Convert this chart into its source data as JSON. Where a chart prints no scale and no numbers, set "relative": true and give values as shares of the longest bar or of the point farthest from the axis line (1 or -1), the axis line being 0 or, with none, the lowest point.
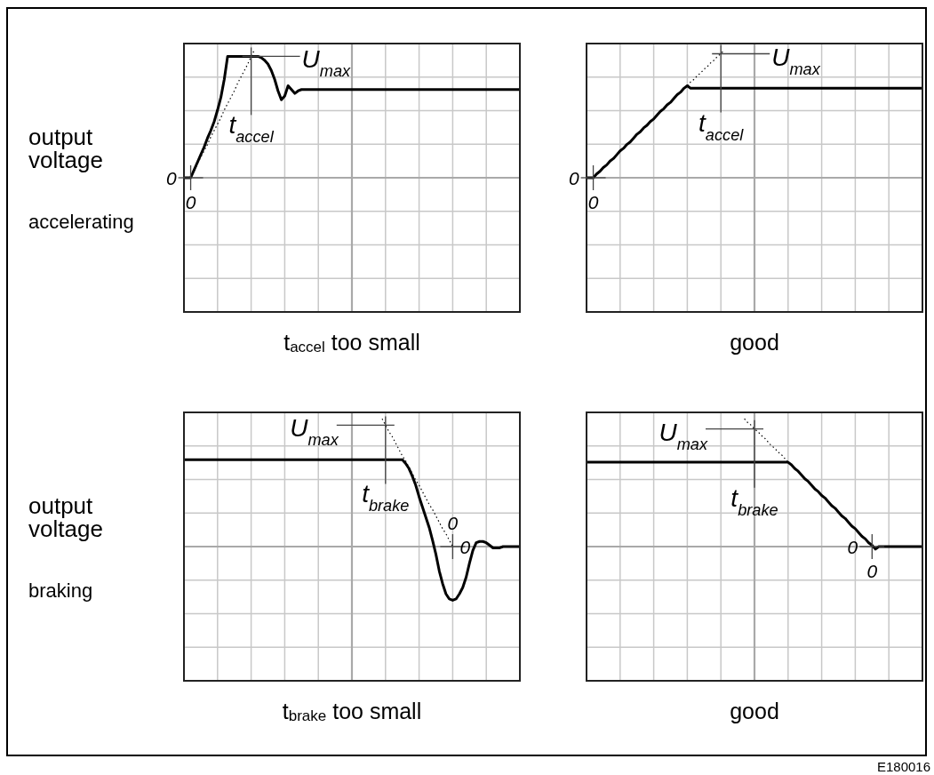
{
  "chart_data": [
    {
      "type": "line",
      "relative": true,
      "grid": true,
      "title": "t$_{accel}$ too small",
      "ylabel": "output voltage",
      "categories": [
        null,
        null,
        "0",
        null,
        null,
        null,
        null,
        null,
        null,
        null,
        null,
        null,
        null,
        null,
        null,
        null,
        null,
        null,
        null,
        null,
        "t$_{accel}$",
        null,
        null,
        null,
        null,
        null,
        null,
        null,
        null,
        null,
        null,
        null,
        null,
        null,
        null,
        null,
        null,
        null,
        null,
        null,
        null,
        null,
        null,
        null,
        null,
        null,
        null,
        null,
        null,
        null,
        null,
        null,
        null,
        null,
        null,
        null,
        null,
        null,
        null,
        null,
        null,
        null,
        null,
        null,
        null,
        null,
        null,
        null,
        null,
        null,
        null,
        null,
        null,
        null,
        null,
        null,
        null,
        null,
        null,
        null,
        null,
        null,
        null,
        null,
        null,
        null,
        null,
        null,
        null,
        null,
        null,
        null,
        null,
        null,
        null,
        null,
        null,
        null,
        null,
        null,
        null
      ],
      "series": [
        {
          "color": "#000000",
          "values": [
            0,
            0,
            0,
            0.06,
            0.12,
            0.18,
            0.24,
            0.31,
            0.37,
            0.44,
            0.53,
            0.63,
            0.77,
            0.95,
            0.95,
            0.95,
            0.95,
            0.95,
            0.95,
            0.95,
            0.95,
            0.95,
            0.95,
            0.94,
            0.92,
            0.89,
            0.84,
            0.77,
            0.68,
            0.61,
            0.64,
            0.72,
            0.69,
            0.66,
            0.68,
            0.69,
            0.69,
            0.69,
            0.69,
            0.69,
            0.69,
            0.69,
            0.69,
            0.69,
            0.69,
            0.69,
            0.69,
            0.69,
            0.69,
            0.69,
            0.69,
            0.69,
            0.69,
            0.69,
            0.69,
            0.69,
            0.69,
            0.69,
            0.69,
            0.69,
            0.69,
            0.69,
            0.69,
            0.69,
            0.69,
            0.69,
            0.69,
            0.69,
            0.69,
            0.69,
            0.69,
            0.69,
            0.69,
            0.69,
            0.69,
            0.69,
            0.69,
            0.69,
            0.69,
            0.69,
            0.69,
            0.69,
            0.69,
            0.69,
            0.69,
            0.69,
            0.69,
            0.69,
            0.69,
            0.69,
            0.69,
            0.69,
            0.69,
            0.69,
            0.69,
            0.69,
            0.69,
            0.69,
            0.69,
            0.69,
            0.69
          ]
        },
        {
          "color": "#000000",
          "line_style": "dotted",
          "values": [
            null,
            null,
            0,
            0.05,
            0.11,
            0.16,
            0.21,
            0.26,
            0.32,
            0.37,
            0.42,
            0.47,
            0.53,
            0.58,
            0.63,
            0.68,
            0.74,
            0.79,
            0.84,
            0.89,
            0.95,
            1,
            null,
            null,
            null,
            null,
            null,
            null,
            null,
            null,
            null,
            null,
            null,
            null,
            null,
            null,
            null,
            null,
            null,
            null,
            null,
            null,
            null,
            null,
            null,
            null,
            null,
            null,
            null,
            null,
            null,
            null,
            null,
            null,
            null,
            null,
            null,
            null,
            null,
            null,
            null,
            null,
            null,
            null,
            null,
            null,
            null,
            null,
            null,
            null,
            null,
            null,
            null,
            null,
            null,
            null,
            null,
            null,
            null,
            null,
            null,
            null,
            null,
            null,
            null,
            null,
            null,
            null,
            null,
            null,
            null,
            null,
            null,
            null,
            null,
            null,
            null,
            null,
            null,
            null,
            null
          ]
        }
      ],
      "annotations": [
        "0",
        "U$_{max}$",
        "accelerating"
      ]
    },
    {
      "type": "line",
      "relative": true,
      "grid": true,
      "title": "good",
      "categories": [
        null,
        null,
        "0",
        null,
        null,
        null,
        null,
        null,
        null,
        null,
        null,
        null,
        null,
        null,
        null,
        null,
        null,
        null,
        null,
        null,
        null,
        null,
        null,
        null,
        null,
        null,
        null,
        null,
        null,
        null,
        null,
        null,
        null,
        null,
        null,
        null,
        null,
        null,
        null,
        null,
        "t$_{accel}$",
        null,
        null,
        null,
        null,
        null,
        null,
        null,
        null,
        null,
        null,
        null,
        null,
        null,
        null,
        null,
        null,
        null,
        null,
        null,
        null,
        null,
        null,
        null,
        null,
        null,
        null,
        null,
        null,
        null,
        null,
        null,
        null,
        null,
        null,
        null,
        null,
        null,
        null,
        null,
        null,
        null,
        null,
        null,
        null,
        null,
        null,
        null,
        null,
        null,
        null,
        null,
        null,
        null,
        null,
        null,
        null,
        null,
        null,
        null,
        null
      ],
      "series": [
        {
          "color": "#000000",
          "values": [
            0,
            0,
            0,
            0.03,
            0.05,
            0.08,
            0.1,
            0.13,
            0.15,
            0.18,
            0.21,
            0.23,
            0.26,
            0.28,
            0.31,
            0.34,
            0.36,
            0.39,
            0.41,
            0.44,
            0.46,
            0.49,
            0.52,
            0.54,
            0.57,
            0.59,
            0.62,
            0.65,
            0.67,
            0.7,
            0.72,
            0.7,
            0.7,
            0.7,
            0.7,
            0.7,
            0.7,
            0.7,
            0.7,
            0.7,
            0.7,
            0.7,
            0.7,
            0.7,
            0.7,
            0.7,
            0.7,
            0.7,
            0.7,
            0.7,
            0.7,
            0.7,
            0.7,
            0.7,
            0.7,
            0.7,
            0.7,
            0.7,
            0.7,
            0.7,
            0.7,
            0.7,
            0.7,
            0.7,
            0.7,
            0.7,
            0.7,
            0.7,
            0.7,
            0.7,
            0.7,
            0.7,
            0.7,
            0.7,
            0.7,
            0.7,
            0.7,
            0.7,
            0.7,
            0.7,
            0.7,
            0.7,
            0.7,
            0.7,
            0.7,
            0.7,
            0.7,
            0.7,
            0.7,
            0.7,
            0.7,
            0.7,
            0.7,
            0.7,
            0.7,
            0.7,
            0.7,
            0.7,
            0.7,
            0.7,
            0.7
          ]
        },
        {
          "color": "#000000",
          "line_style": "dotted",
          "values": [
            null,
            null,
            null,
            null,
            null,
            null,
            null,
            null,
            null,
            null,
            null,
            null,
            null,
            null,
            null,
            null,
            null,
            null,
            null,
            null,
            null,
            null,
            null,
            null,
            null,
            null,
            null,
            null,
            null,
            null,
            0.72,
            0.75,
            0.77,
            0.8,
            0.82,
            0.85,
            0.87,
            0.9,
            0.92,
            0.95,
            0.97,
            1,
            null,
            null,
            null,
            null,
            null,
            null,
            null,
            null,
            null,
            null,
            null,
            null,
            null,
            null,
            null,
            null,
            null,
            null,
            null,
            null,
            null,
            null,
            null,
            null,
            null,
            null,
            null,
            null,
            null,
            null,
            null,
            null,
            null,
            null,
            null,
            null,
            null,
            null,
            null,
            null,
            null,
            null,
            null,
            null,
            null,
            null,
            null,
            null,
            null,
            null,
            null,
            null,
            null,
            null,
            null,
            null,
            null,
            null,
            null
          ]
        }
      ],
      "annotations": [
        "0",
        "U$_{max}$"
      ]
    },
    {
      "type": "line",
      "relative": true,
      "grid": true,
      "title": "t$_{brake}$ too small",
      "ylabel": "output voltage",
      "categories": [
        null,
        null,
        null,
        null,
        null,
        null,
        null,
        null,
        null,
        null,
        null,
        null,
        null,
        null,
        null,
        null,
        null,
        null,
        null,
        null,
        null,
        null,
        null,
        null,
        null,
        null,
        null,
        null,
        null,
        null,
        null,
        null,
        null,
        null,
        null,
        null,
        null,
        null,
        null,
        null,
        null,
        null,
        null,
        null,
        null,
        null,
        null,
        null,
        null,
        null,
        null,
        null,
        null,
        null,
        null,
        null,
        null,
        null,
        null,
        null,
        "t$_{brake}$",
        null,
        null,
        null,
        null,
        null,
        null,
        null,
        null,
        null,
        null,
        null,
        null,
        null,
        null,
        null,
        null,
        null,
        null,
        null,
        "0",
        null,
        null,
        null,
        null,
        null,
        null,
        null,
        null,
        null,
        null,
        null,
        null,
        null,
        null,
        null,
        null,
        null,
        null,
        null,
        null
      ],
      "series": [
        {
          "color": "#000000",
          "values": [
            0.68,
            0.68,
            0.68,
            0.68,
            0.68,
            0.68,
            0.68,
            0.68,
            0.68,
            0.68,
            0.68,
            0.68,
            0.68,
            0.68,
            0.68,
            0.68,
            0.68,
            0.68,
            0.68,
            0.68,
            0.68,
            0.68,
            0.68,
            0.68,
            0.68,
            0.68,
            0.68,
            0.68,
            0.68,
            0.68,
            0.68,
            0.68,
            0.68,
            0.68,
            0.68,
            0.68,
            0.68,
            0.68,
            0.68,
            0.68,
            0.68,
            0.68,
            0.68,
            0.68,
            0.68,
            0.68,
            0.68,
            0.68,
            0.68,
            0.68,
            0.68,
            0.68,
            0.68,
            0.68,
            0.68,
            0.68,
            0.68,
            0.68,
            0.68,
            0.68,
            0.68,
            0.68,
            0.68,
            0.68,
            0.68,
            0.68,
            0.65,
            0.61,
            0.55,
            0.48,
            0.39,
            0.31,
            0.23,
            0.15,
            0.05,
            -0.06,
            -0.19,
            -0.29,
            -0.37,
            -0.41,
            -0.42,
            -0.41,
            -0.37,
            -0.32,
            -0.24,
            -0.13,
            -0.03,
            0.03,
            0.04,
            0.04,
            0.03,
            0.01,
            -0.01,
            -0.01,
            -0.01,
            0,
            0,
            0,
            0,
            0,
            0
          ]
        },
        {
          "color": "#000000",
          "line_style": "dotted",
          "values": [
            null,
            null,
            null,
            null,
            null,
            null,
            null,
            null,
            null,
            null,
            null,
            null,
            null,
            null,
            null,
            null,
            null,
            null,
            null,
            null,
            null,
            null,
            null,
            null,
            null,
            null,
            null,
            null,
            null,
            null,
            null,
            null,
            null,
            null,
            null,
            null,
            null,
            null,
            null,
            null,
            null,
            null,
            null,
            null,
            null,
            null,
            null,
            null,
            null,
            null,
            null,
            null,
            null,
            null,
            null,
            null,
            null,
            null,
            null,
            1,
            0.95,
            0.9,
            0.86,
            0.81,
            0.76,
            0.71,
            0.67,
            0.62,
            0.57,
            0.52,
            0.48,
            0.43,
            0.38,
            0.33,
            0.29,
            0.24,
            0.19,
            0.14,
            0.1,
            0.05,
            0,
            null,
            null,
            null,
            null,
            null,
            null,
            null,
            null,
            null,
            null,
            null,
            null,
            null,
            null,
            null,
            null,
            null,
            null,
            null,
            null
          ]
        }
      ],
      "annotations": [
        "U$_{max}$",
        "0",
        "braking"
      ]
    },
    {
      "type": "line",
      "relative": true,
      "grid": true,
      "title": "good",
      "categories": [
        null,
        null,
        null,
        null,
        null,
        null,
        null,
        null,
        null,
        null,
        null,
        null,
        null,
        null,
        null,
        null,
        null,
        null,
        null,
        null,
        null,
        null,
        null,
        null,
        null,
        null,
        null,
        null,
        null,
        null,
        null,
        null,
        null,
        null,
        null,
        null,
        null,
        null,
        null,
        null,
        null,
        null,
        null,
        null,
        null,
        null,
        null,
        null,
        null,
        null,
        "t$_{brake}$",
        null,
        null,
        null,
        null,
        null,
        null,
        null,
        null,
        null,
        null,
        null,
        null,
        null,
        null,
        null,
        null,
        null,
        null,
        null,
        null,
        null,
        null,
        null,
        null,
        null,
        null,
        null,
        null,
        null,
        null,
        null,
        null,
        null,
        null,
        "0",
        null,
        null,
        null,
        null,
        null,
        null,
        null,
        null,
        null,
        null,
        null,
        null,
        null,
        null,
        null
      ],
      "series": [
        {
          "color": "#000000",
          "values": [
            0.66,
            0.66,
            0.66,
            0.66,
            0.66,
            0.66,
            0.66,
            0.66,
            0.66,
            0.66,
            0.66,
            0.66,
            0.66,
            0.66,
            0.66,
            0.66,
            0.66,
            0.66,
            0.66,
            0.66,
            0.66,
            0.66,
            0.66,
            0.66,
            0.66,
            0.66,
            0.66,
            0.66,
            0.66,
            0.66,
            0.66,
            0.66,
            0.66,
            0.66,
            0.66,
            0.66,
            0.66,
            0.66,
            0.66,
            0.66,
            0.66,
            0.66,
            0.66,
            0.66,
            0.66,
            0.66,
            0.66,
            0.66,
            0.66,
            0.66,
            0.66,
            0.66,
            0.66,
            0.66,
            0.66,
            0.66,
            0.66,
            0.66,
            0.66,
            0.66,
            0.66,
            0.64,
            0.61,
            0.59,
            0.56,
            0.53,
            0.51,
            0.48,
            0.45,
            0.43,
            0.4,
            0.38,
            0.35,
            0.32,
            0.3,
            0.27,
            0.24,
            0.22,
            0.19,
            0.16,
            0.14,
            0.11,
            0.08,
            0.06,
            0.03,
            0.01,
            -0.02,
            0,
            0,
            0,
            0,
            0,
            0,
            0,
            0,
            0,
            0,
            0,
            0,
            0,
            0
          ]
        },
        {
          "color": "#000000",
          "line_style": "dotted",
          "values": [
            null,
            null,
            null,
            null,
            null,
            null,
            null,
            null,
            null,
            null,
            null,
            null,
            null,
            null,
            null,
            null,
            null,
            null,
            null,
            null,
            null,
            null,
            null,
            null,
            null,
            null,
            null,
            null,
            null,
            null,
            null,
            null,
            null,
            null,
            null,
            null,
            null,
            null,
            null,
            null,
            null,
            null,
            null,
            null,
            null,
            null,
            null,
            1,
            0.97,
            0.95,
            0.92,
            0.9,
            0.87,
            0.85,
            0.82,
            0.79,
            0.77,
            0.74,
            0.72,
            0.69,
            0.66,
            null,
            null,
            null,
            null,
            null,
            null,
            null,
            null,
            null,
            null,
            null,
            null,
            null,
            null,
            null,
            null,
            null,
            null,
            null,
            null,
            null,
            null,
            null,
            null,
            null,
            null,
            null,
            null,
            null,
            null,
            null,
            null,
            null,
            null,
            null,
            null,
            null,
            null,
            null,
            null
          ]
        }
      ],
      "annotations": [
        "U$_{max}$",
        "0",
        "E180016"
      ]
    }
  ]
}
